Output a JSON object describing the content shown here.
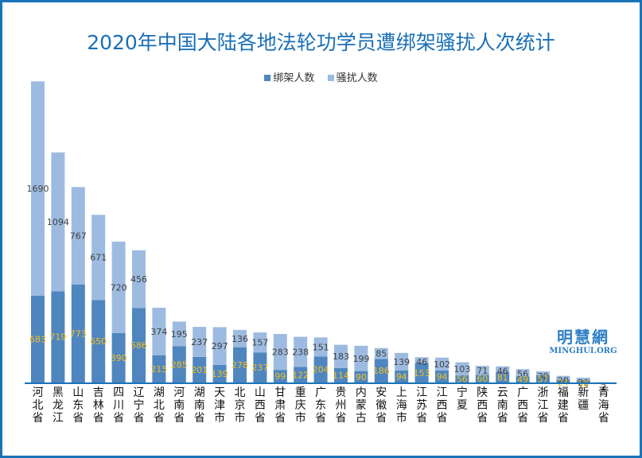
{
  "chart_data": {
    "type": "bar",
    "stacked": true,
    "title": "2020年中国大陆各地法轮功学员遭绑架骚扰人次统计",
    "xlabel": "",
    "ylabel": "",
    "ylim": [
      0,
      2400
    ],
    "grid": false,
    "legend_position": "top-center",
    "categories": [
      "河北省",
      "黑龙江",
      "山东省",
      "吉林省",
      "四川省",
      "辽宁省",
      "湖北省",
      "河南省",
      "湖南省",
      "天津市",
      "北京市",
      "山西省",
      "甘肃省",
      "重庆市",
      "广东省",
      "贵州省",
      "内蒙古",
      "安徽省",
      "上海市",
      "江苏省",
      "江西省",
      "宁夏",
      "陕西省",
      "云南省",
      "广西省",
      "浙江省",
      "福建省",
      "新疆",
      "青海省"
    ],
    "series": [
      {
        "name": "绑架人数",
        "color": "#4f86bf",
        "label_color": "#f5c020",
        "values": [
          683,
          719,
          773,
          650,
          390,
          586,
          215,
          285,
          201,
          139,
          278,
          237,
          99,
          122,
          204,
          114,
          90,
          186,
          94,
          153,
          94,
          56,
          60,
          81,
          49,
          57,
          24,
          18,
          0
        ]
      },
      {
        "name": "骚扰人数",
        "color": "#9dbbe0",
        "label_color": "#404040",
        "values": [
          1690,
          1094,
          767,
          671,
          720,
          456,
          374,
          195,
          237,
          297,
          136,
          157,
          283,
          238,
          151,
          183,
          199,
          85,
          139,
          46,
          102,
          103,
          71,
          46,
          56,
          30,
          28,
          20,
          2
        ]
      }
    ]
  },
  "logo": {
    "cn": "明慧網",
    "en": "MINGHUI.ORG"
  }
}
